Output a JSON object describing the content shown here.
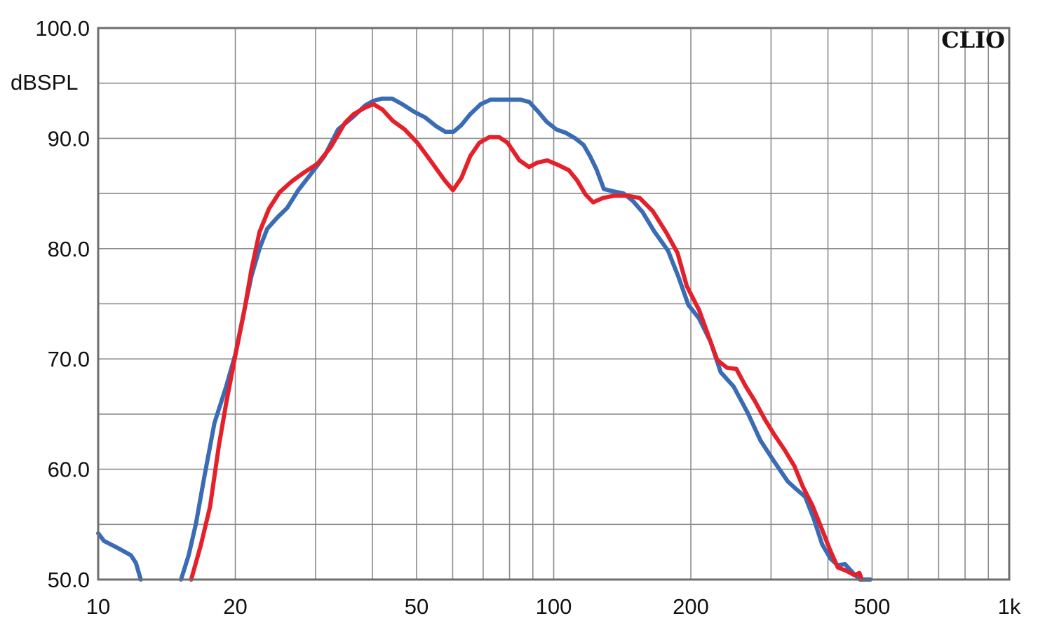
{
  "chart_data": {
    "type": "line",
    "brand": "CLIO",
    "ylabel": "dBSPL",
    "x_scale": "log",
    "xlim": [
      10,
      1000
    ],
    "ylim": [
      50,
      100
    ],
    "grid": true,
    "x_ticks": [
      {
        "value": 10,
        "label": "10"
      },
      {
        "value": 20,
        "label": "20"
      },
      {
        "value": 50,
        "label": "50"
      },
      {
        "value": 100,
        "label": "100"
      },
      {
        "value": 200,
        "label": "200"
      },
      {
        "value": 500,
        "label": "500"
      },
      {
        "value": 1000,
        "label": "1k"
      }
    ],
    "y_ticks": [
      {
        "value": 100,
        "label": "100.0"
      },
      {
        "value": 90,
        "label": "90.0"
      },
      {
        "value": 80,
        "label": "80.0"
      },
      {
        "value": 70,
        "label": "70.0"
      },
      {
        "value": 60,
        "label": "60.0"
      },
      {
        "value": 50,
        "label": "50.0"
      }
    ],
    "colors": {
      "grid": "#8c8c8c",
      "frame": "#6e6e6e",
      "series_blue": "#3a6bb5",
      "series_red": "#e4202a"
    },
    "series": [
      {
        "color": "#3a6bb5",
        "segments": [
          {
            "x": [
              10.0,
              10.3,
              11.0,
              11.8,
              12.1,
              12.4
            ],
            "y": [
              54.2,
              53.5,
              52.9,
              52.2,
              51.5,
              50.0
            ]
          },
          {
            "x": [
              15.2,
              15.8,
              16.4,
              17.1,
              18.0,
              19.1,
              20.0,
              20.8,
              21.7,
              22.6,
              23.5,
              24.7,
              26.0,
              27.5,
              29.6,
              31.4,
              33.6,
              36.4,
              38.6,
              40.2,
              42.0,
              44.2,
              46.5,
              49.4,
              52.2,
              55.2,
              57.8,
              60.3,
              62.7,
              65.6,
              69.2,
              72.6,
              76.0,
              80.8,
              84.6,
              88.4,
              92.1,
              96.5,
              101.4,
              106.3,
              111.5,
              116.3,
              120.1,
              124.1,
              128.9,
              135.2,
              142.4,
              149.4,
              156.8,
              166.0,
              178.3,
              188.0,
              197.5,
              208.3,
              220.8,
              232.6,
              248.3,
              266.7,
              284.5,
              304.8,
              326.4,
              340.6,
              356.6,
              372.4,
              388.4,
              405.1,
              420.1,
              436.1,
              454.1,
              470.0,
              483.7,
              490.2,
              495.6
            ],
            "y": [
              50.0,
              52.2,
              55.1,
              59.3,
              64.2,
              67.5,
              70.4,
              73.9,
              77.5,
              80.0,
              81.8,
              82.8,
              83.7,
              85.3,
              87.0,
              88.4,
              90.8,
              92.0,
              93.0,
              93.4,
              93.6,
              93.6,
              93.1,
              92.4,
              91.9,
              91.1,
              90.6,
              90.6,
              91.2,
              92.2,
              93.1,
              93.5,
              93.5,
              93.5,
              93.5,
              93.3,
              92.5,
              91.5,
              90.8,
              90.5,
              90.0,
              89.4,
              88.4,
              87.2,
              85.4,
              85.2,
              85.0,
              84.3,
              83.3,
              81.6,
              79.8,
              77.4,
              74.9,
              73.7,
              71.6,
              68.8,
              67.5,
              65.1,
              62.6,
              60.7,
              58.9,
              58.2,
              57.5,
              55.5,
              53.2,
              51.9,
              51.3,
              51.4,
              50.6,
              50.0,
              50.0,
              50.0,
              50.0
            ]
          }
        ]
      },
      {
        "color": "#e4202a",
        "segments": [
          {
            "x": [
              16.0,
              16.8,
              17.6,
              18.4,
              19.1,
              20.0,
              20.9,
              21.7,
              22.6,
              23.7,
              25.0,
              26.6,
              28.3,
              30.3,
              32.4,
              34.8,
              36.4,
              38.6,
              40.2,
              42.1,
              44.3,
              47.1,
              50.2,
              53.6,
              57.6,
              60.1,
              62.7,
              65.6,
              68.7,
              72.2,
              75.9,
              79.2,
              84.1,
              88.3,
              92.1,
              96.8,
              102.1,
              108.0,
              112.5,
              117.5,
              122.1,
              128.4,
              135.9,
              145.0,
              154.4,
              165.0,
              177.0,
              187.0,
              196.0,
              208.7,
              218.6,
              228.6,
              240.2,
              251.7,
              264.1,
              276.3,
              291.0,
              305.4,
              320.8,
              337.5,
              352.5,
              370.0,
              386.8,
              404.1,
              420.4,
              438.6,
              457.3,
              468.9,
              474.7
            ],
            "y": [
              50.0,
              53.1,
              56.6,
              62.1,
              66.0,
              70.3,
              74.2,
              78.1,
              81.5,
              83.6,
              85.1,
              86.1,
              86.9,
              87.7,
              89.2,
              91.4,
              92.2,
              92.8,
              93.1,
              92.6,
              91.6,
              90.8,
              89.6,
              88.0,
              86.2,
              85.3,
              86.4,
              88.4,
              89.6,
              90.1,
              90.1,
              89.6,
              88.0,
              87.4,
              87.8,
              88.0,
              87.6,
              87.1,
              86.2,
              84.9,
              84.2,
              84.6,
              84.8,
              84.8,
              84.6,
              83.4,
              81.4,
              79.6,
              76.6,
              74.4,
              72.1,
              69.9,
              69.2,
              69.1,
              67.5,
              66.2,
              64.5,
              63.1,
              61.8,
              60.3,
              58.4,
              56.7,
              54.7,
              52.7,
              51.1,
              50.8,
              50.4,
              50.6,
              50.0
            ]
          }
        ]
      }
    ]
  }
}
